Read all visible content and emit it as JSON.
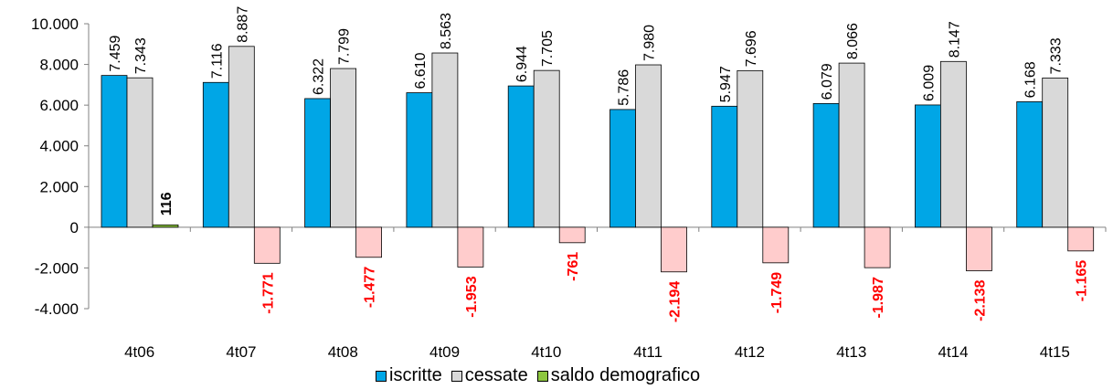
{
  "chart_data": {
    "type": "bar",
    "title": "",
    "xlabel": "",
    "ylabel": "",
    "ylim": [
      -4000,
      10000
    ],
    "yticks": [
      10000,
      8000,
      6000,
      4000,
      2000,
      0,
      -2000,
      -4000
    ],
    "ytick_labels": [
      "10.000",
      "8.000",
      "6.000",
      "4.000",
      "2.000",
      "0",
      "-2.000",
      "-4.000"
    ],
    "categories": [
      "4t06",
      "4t07",
      "4t08",
      "4t09",
      "4t10",
      "4t11",
      "4t12",
      "4t13",
      "4t14",
      "4t15"
    ],
    "series": [
      {
        "name": "iscritte",
        "color": "#00a6e6",
        "values": [
          7459,
          7116,
          6322,
          6610,
          6944,
          5786,
          5947,
          6079,
          6009,
          6168
        ],
        "labels": [
          "7.459",
          "7.116",
          "6.322",
          "6.610",
          "6.944",
          "5.786",
          "5.947",
          "6.079",
          "6.009",
          "6.168"
        ]
      },
      {
        "name": "cessate",
        "color": "#d9d9d9",
        "values": [
          7343,
          8887,
          7799,
          8563,
          7705,
          7980,
          7696,
          8066,
          8147,
          7333
        ],
        "labels": [
          "7.343",
          "8.887",
          "7.799",
          "8.563",
          "7.705",
          "7.980",
          "7.696",
          "8.066",
          "8.147",
          "7.333"
        ]
      },
      {
        "name": "saldo demografico",
        "color": "#8dc63f",
        "negative_color": "#ffcccc",
        "values": [
          116,
          -1771,
          -1477,
          -1953,
          -761,
          -2194,
          -1749,
          -1987,
          -2138,
          -1165
        ],
        "labels": [
          "116",
          "-1.771",
          "-1.477",
          "-1.953",
          "-761",
          "-2.194",
          "-1.749",
          "-1.987",
          "-2.138",
          "-1.165"
        ],
        "positive_label_color": "#000000",
        "negative_label_color": "#ff0000"
      }
    ],
    "legend_position": "bottom",
    "grid": false
  }
}
